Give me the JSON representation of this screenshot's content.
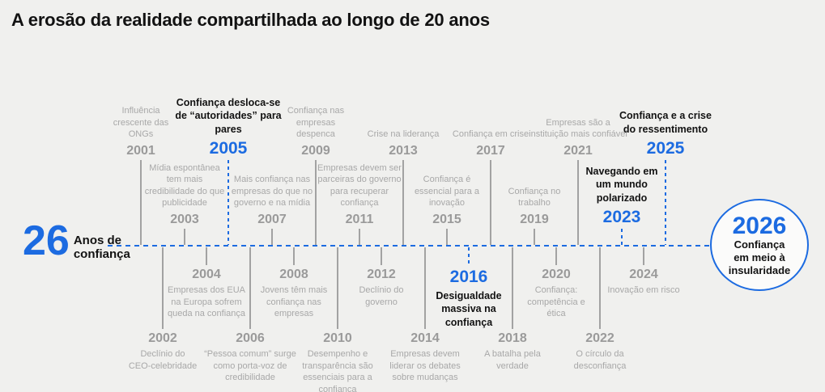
{
  "title": "A erosão da realidade compartilhada ao longo de 20 anos",
  "intro": {
    "number": "26",
    "label": "Anos de\nconfiança"
  },
  "colors": {
    "accent": "#1c6be1",
    "background": "#f0f0ee",
    "muted_text": "#a8a8a8",
    "muted_year": "#9a9a9a",
    "connector": "#a2a2a2",
    "dark_text": "#121212"
  },
  "timeline": {
    "items": [
      {
        "year": "2001",
        "row": "top",
        "highlight": false,
        "text": "Influência\ncrescente das\nONGs"
      },
      {
        "year": "2002",
        "row": "bottom",
        "highlight": false,
        "text": "Declínio do\nCEO-celebridade"
      },
      {
        "year": "2003",
        "row": "mid",
        "highlight": false,
        "text": "Mídia espontânea\ntem mais\ncredibilidade do que\npublicidade"
      },
      {
        "year": "2004",
        "row": "upper",
        "highlight": false,
        "text": "Empresas dos EUA\nna Europa sofrem\nqueda na confiança"
      },
      {
        "year": "2005",
        "row": "top",
        "highlight": true,
        "text": "Confiança desloca-se\nde “autoridades” para\npares"
      },
      {
        "year": "2006",
        "row": "bottom",
        "highlight": false,
        "text": "“Pessoa comum” surge\ncomo porta-voz de\ncredibilidade"
      },
      {
        "year": "2007",
        "row": "mid",
        "highlight": false,
        "text": "Mais confiança nas\nempresas do que no\ngoverno e na mídia"
      },
      {
        "year": "2008",
        "row": "upper",
        "highlight": false,
        "text": "Jovens têm mais\nconfiança nas\nempresas"
      },
      {
        "year": "2009",
        "row": "top",
        "highlight": false,
        "text": "Confiança nas\nempresas\ndespenca"
      },
      {
        "year": "2010",
        "row": "bottom",
        "highlight": false,
        "text": "Desempenho e\ntransparência são\nessenciais para a\nconfiança"
      },
      {
        "year": "2011",
        "row": "mid",
        "highlight": false,
        "text": "Empresas devem ser\nparceiras do governo\npara recuperar\nconfiança"
      },
      {
        "year": "2012",
        "row": "upper",
        "highlight": false,
        "text": "Declínio do\ngoverno"
      },
      {
        "year": "2013",
        "row": "top",
        "highlight": false,
        "text": "Crise na liderança"
      },
      {
        "year": "2014",
        "row": "bottom",
        "highlight": false,
        "text": "Empresas devem\nliderar os debates\nsobre mudanças"
      },
      {
        "year": "2015",
        "row": "mid",
        "highlight": false,
        "text": "Confiança é\nessencial para a\ninovação"
      },
      {
        "year": "2016",
        "row": "upper",
        "highlight": true,
        "text": "Desigualdade\nmassiva na\nconfiança"
      },
      {
        "year": "2017",
        "row": "top",
        "highlight": false,
        "text": "Confiança em crise"
      },
      {
        "year": "2018",
        "row": "bottom",
        "highlight": false,
        "text": "A batalha pela\nverdade"
      },
      {
        "year": "2019",
        "row": "mid",
        "highlight": false,
        "text": "Confiança no\ntrabalho"
      },
      {
        "year": "2020",
        "row": "upper",
        "highlight": false,
        "text": "Confiança:\ncompetência e\nética"
      },
      {
        "year": "2021",
        "row": "top",
        "highlight": false,
        "text": "Empresas são a\ninstituição mais confiável"
      },
      {
        "year": "2022",
        "row": "bottom",
        "highlight": false,
        "text": "O círculo da\ndesconfiança"
      },
      {
        "year": "2023",
        "row": "mid",
        "highlight": true,
        "text": "Navegando em\num mundo\npolarizado"
      },
      {
        "year": "2024",
        "row": "upper",
        "highlight": false,
        "text": "Inovação em risco"
      },
      {
        "year": "2025",
        "row": "top",
        "highlight": true,
        "text": "Confiança e a crise\ndo ressentimento"
      },
      {
        "year": "2026",
        "row": "circle",
        "highlight": true,
        "text": "Confiança\nem meio à\ninsularidade"
      }
    ]
  }
}
